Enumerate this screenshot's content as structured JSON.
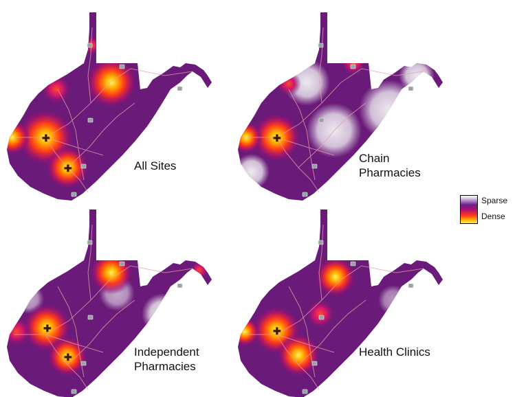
{
  "figure": {
    "panels": [
      {
        "label": "All Sites"
      },
      {
        "label": "Chain\nPharmacies"
      },
      {
        "label": "Independent\nPharmacies"
      },
      {
        "label": "Health Clinics"
      }
    ]
  },
  "legend": {
    "sparse_label": "Sparse",
    "dense_label": "Dense",
    "colors": {
      "sparse": "#ffffff",
      "mid": "#6c1c8c",
      "hot": "#ff3a1a",
      "dense": "#fff266"
    }
  },
  "map_style": {
    "base_color": "#6a1a78",
    "road_color": "#e8a0a8",
    "sparse_color": "#e9e3ec",
    "panels": [
      {
        "density_pattern": "hotspots at western border, central-west city, southern city and northern panhandle"
      },
      {
        "density_pattern": "hotspot at western border; sparse across east and center"
      },
      {
        "density_pattern": "hotspots at central-west city, southern city and north-central area"
      },
      {
        "density_pattern": "hotspots at western border, southern city and north-central area"
      }
    ]
  }
}
